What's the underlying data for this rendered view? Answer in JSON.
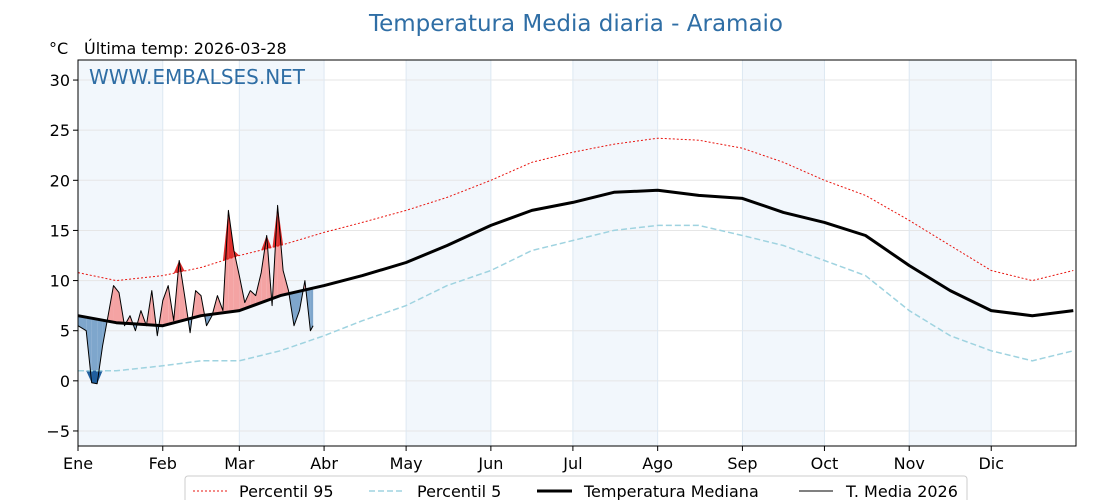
{
  "chart_data": {
    "type": "line",
    "title": "Temperatura Media diaria - Aramaio",
    "unit_label": "°C",
    "subtitle": "Última temp: 2026-03-28",
    "watermark": "WWW.EMBALSES.NET",
    "ylim": [
      -6.5,
      32
    ],
    "yticks": [
      -5,
      0,
      5,
      10,
      15,
      20,
      25,
      30
    ],
    "ytick_labels": [
      "−5",
      "0",
      "5",
      "10",
      "15",
      "20",
      "25",
      "30"
    ],
    "x_day_range": [
      1,
      366
    ],
    "months": [
      {
        "label": "Ene",
        "day": 1
      },
      {
        "label": "Feb",
        "day": 32
      },
      {
        "label": "Mar",
        "day": 60
      },
      {
        "label": "Abr",
        "day": 91
      },
      {
        "label": "May",
        "day": 121
      },
      {
        "label": "Jun",
        "day": 152
      },
      {
        "label": "Jul",
        "day": 182
      },
      {
        "label": "Ago",
        "day": 213
      },
      {
        "label": "Sep",
        "day": 244
      },
      {
        "label": "Oct",
        "day": 274
      },
      {
        "label": "Nov",
        "day": 305
      },
      {
        "label": "Dic",
        "day": 335
      }
    ],
    "grid": true,
    "legend_position": "bottom-center",
    "legend": [
      {
        "label": "Percentil 95",
        "key": "p95"
      },
      {
        "label": "Percentil 5",
        "key": "p5"
      },
      {
        "label": "Temperatura Mediana",
        "key": "median"
      },
      {
        "label": "T. Media 2026",
        "key": "current"
      }
    ],
    "colors": {
      "p95": "#e8150f",
      "p5": "#9fd3e0",
      "median": "#000000",
      "current": "#000000",
      "above_fill": "#f4a3a3",
      "above_fill_strong": "#e0302e",
      "below_fill": "#7ea6cc",
      "below_fill_strong": "#1f5f9e",
      "band_fill": "#f2f7fc",
      "watermark": "#2f6ea5"
    },
    "series": [
      {
        "name": "Percentil 95",
        "key": "p95",
        "x": [
          1,
          15,
          32,
          46,
          60,
          75,
          91,
          105,
          121,
          136,
          152,
          167,
          182,
          197,
          213,
          228,
          244,
          259,
          274,
          289,
          305,
          320,
          335,
          350,
          365
        ],
        "y": [
          10.8,
          10.0,
          10.5,
          11.3,
          12.5,
          13.5,
          14.8,
          15.8,
          17.0,
          18.3,
          20.0,
          21.8,
          22.8,
          23.6,
          24.2,
          24.0,
          23.2,
          21.8,
          20.0,
          18.5,
          16.0,
          13.5,
          11.0,
          10.0,
          11.0
        ]
      },
      {
        "name": "Percentil 5",
        "key": "p5",
        "x": [
          1,
          15,
          32,
          46,
          60,
          75,
          91,
          105,
          121,
          136,
          152,
          167,
          182,
          197,
          213,
          228,
          244,
          259,
          274,
          289,
          305,
          320,
          335,
          350,
          365
        ],
        "y": [
          1.0,
          1.0,
          1.5,
          2.0,
          2.0,
          3.0,
          4.5,
          6.0,
          7.5,
          9.5,
          11.0,
          13.0,
          14.0,
          15.0,
          15.5,
          15.5,
          14.5,
          13.5,
          12.0,
          10.5,
          7.0,
          4.5,
          3.0,
          2.0,
          3.0
        ]
      },
      {
        "name": "Temperatura Mediana",
        "key": "median",
        "x": [
          1,
          15,
          32,
          46,
          60,
          75,
          91,
          105,
          121,
          136,
          152,
          167,
          182,
          197,
          213,
          228,
          244,
          259,
          274,
          289,
          305,
          320,
          335,
          350,
          365
        ],
        "y": [
          6.5,
          5.8,
          5.5,
          6.5,
          7.0,
          8.5,
          9.5,
          10.5,
          11.8,
          13.5,
          15.5,
          17.0,
          17.8,
          18.8,
          19.0,
          18.5,
          18.2,
          16.8,
          15.8,
          14.5,
          11.5,
          9.0,
          7.0,
          6.5,
          7.0
        ]
      },
      {
        "name": "T. Media 2026",
        "key": "current",
        "x": [
          1,
          4,
          6,
          8,
          10,
          12,
          14,
          16,
          18,
          20,
          22,
          24,
          26,
          28,
          30,
          32,
          34,
          36,
          38,
          40,
          42,
          44,
          46,
          48,
          50,
          52,
          54,
          56,
          58,
          60,
          62,
          64,
          66,
          68,
          70,
          72,
          74,
          76,
          78,
          80,
          82,
          84,
          86,
          87
        ],
        "y": [
          5.5,
          5.0,
          -0.2,
          -0.3,
          3.5,
          6.5,
          9.5,
          8.8,
          5.5,
          6.5,
          5.0,
          7.0,
          5.5,
          9.0,
          4.5,
          8.0,
          9.5,
          6.0,
          12.0,
          8.5,
          4.8,
          9.0,
          8.5,
          5.5,
          6.5,
          8.5,
          7.0,
          17.0,
          13.0,
          10.5,
          7.8,
          9.0,
          8.5,
          10.8,
          14.5,
          7.5,
          17.5,
          11.0,
          9.0,
          5.5,
          7.0,
          10.0,
          5.0,
          5.5
        ]
      }
    ]
  }
}
